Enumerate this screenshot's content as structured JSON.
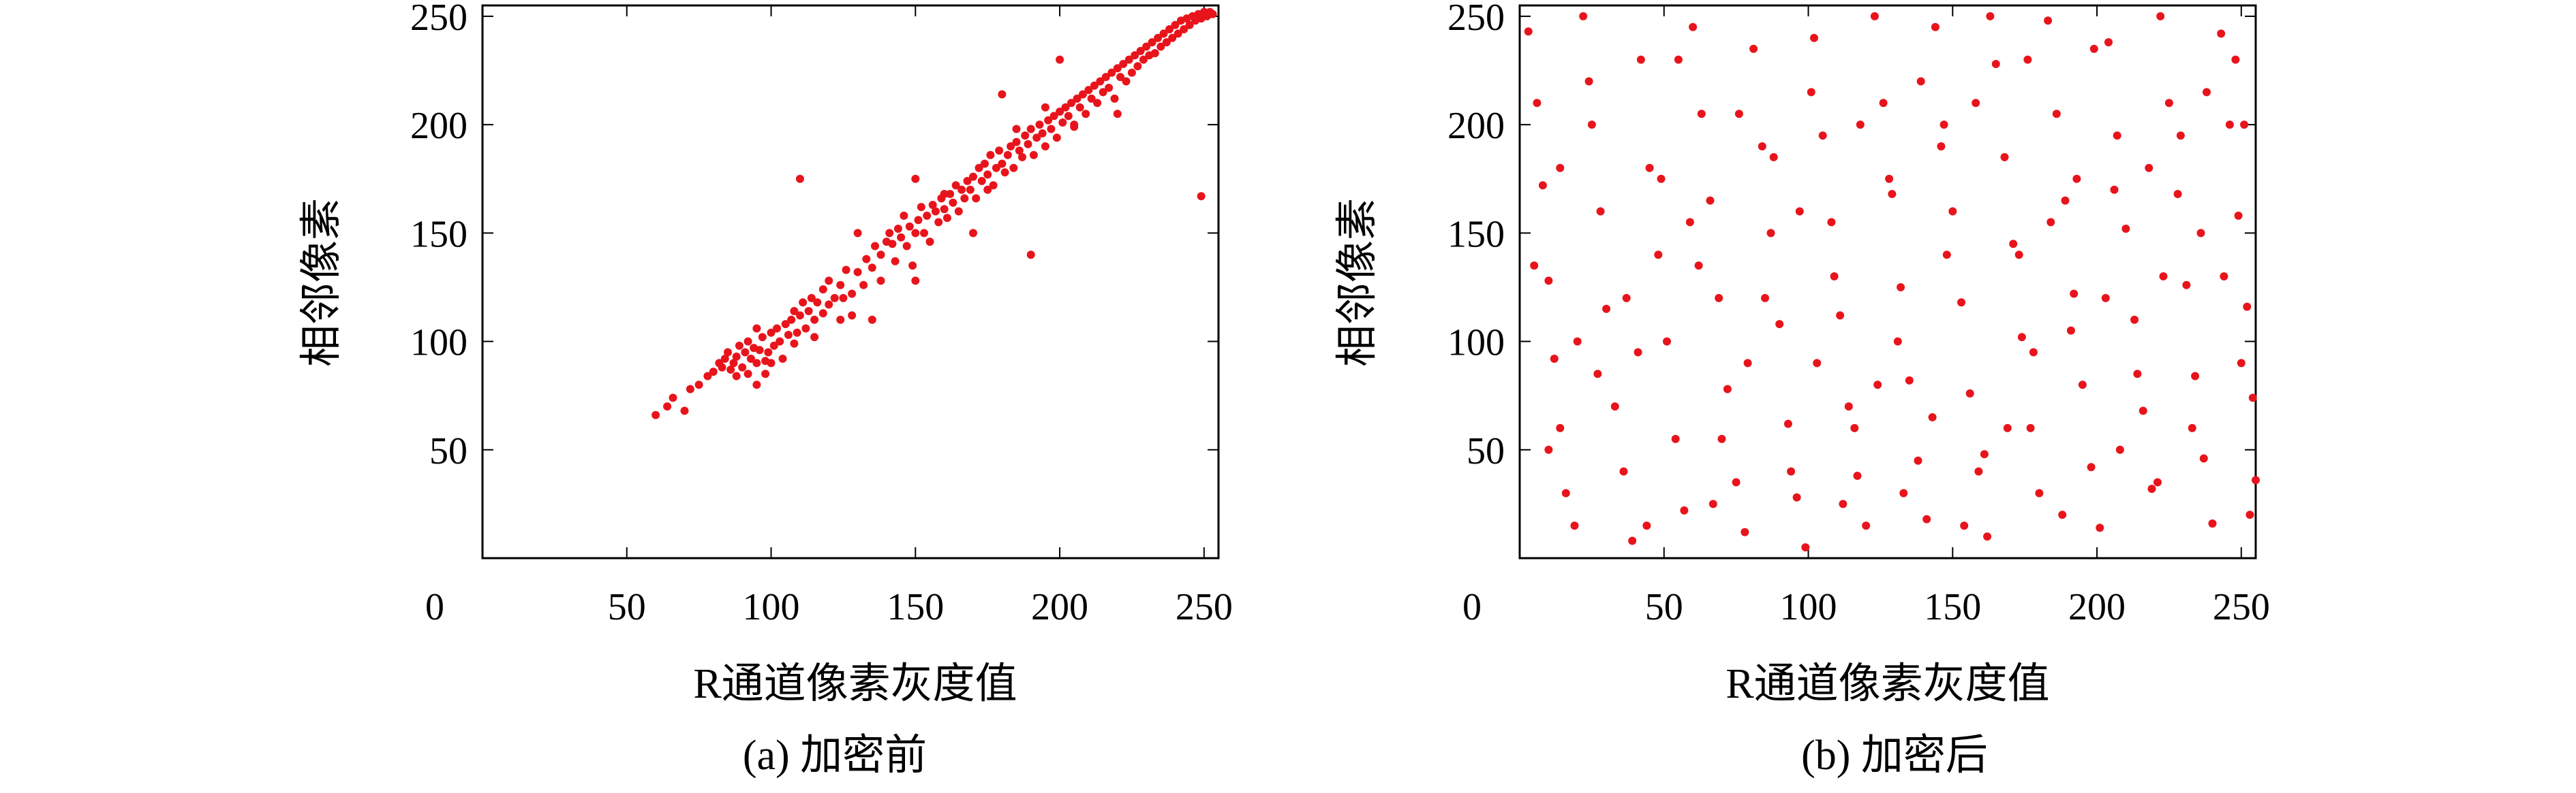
{
  "chart_data": [
    {
      "id": "a",
      "type": "scatter",
      "caption": "(a) 加密前",
      "xlabel": "R通道像素灰度值",
      "ylabel": "相邻像素",
      "xlim": [
        0,
        255
      ],
      "ylim": [
        0,
        255
      ],
      "xticks": [
        0,
        50,
        100,
        150,
        200,
        250
      ],
      "yticks": [
        50,
        100,
        150,
        200,
        250
      ],
      "marker_color": "#e8141c",
      "points": [
        [
          60,
          66
        ],
        [
          64,
          70
        ],
        [
          66,
          74
        ],
        [
          70,
          68
        ],
        [
          72,
          78
        ],
        [
          75,
          80
        ],
        [
          78,
          84
        ],
        [
          80,
          86
        ],
        [
          82,
          90
        ],
        [
          83,
          88
        ],
        [
          84,
          92
        ],
        [
          85,
          95
        ],
        [
          86,
          87
        ],
        [
          87,
          90
        ],
        [
          88,
          93
        ],
        [
          88,
          84
        ],
        [
          89,
          98
        ],
        [
          90,
          88
        ],
        [
          91,
          95
        ],
        [
          92,
          85
        ],
        [
          92,
          100
        ],
        [
          93,
          92
        ],
        [
          94,
          97
        ],
        [
          95,
          90
        ],
        [
          95,
          80
        ],
        [
          96,
          96
        ],
        [
          97,
          102
        ],
        [
          98,
          91
        ],
        [
          98,
          85
        ],
        [
          99,
          95
        ],
        [
          100,
          104
        ],
        [
          101,
          98
        ],
        [
          102,
          106
        ],
        [
          103,
          100
        ],
        [
          104,
          92
        ],
        [
          105,
          108
        ],
        [
          106,
          103
        ],
        [
          107,
          110
        ],
        [
          108,
          99
        ],
        [
          108,
          114
        ],
        [
          109,
          104
        ],
        [
          110,
          112
        ],
        [
          111,
          118
        ],
        [
          112,
          106
        ],
        [
          113,
          114
        ],
        [
          114,
          120
        ],
        [
          115,
          110
        ],
        [
          116,
          118
        ],
        [
          118,
          113
        ],
        [
          118,
          124
        ],
        [
          120,
          117
        ],
        [
          120,
          128
        ],
        [
          122,
          120
        ],
        [
          124,
          110
        ],
        [
          124,
          126
        ],
        [
          126,
          133
        ],
        [
          128,
          122
        ],
        [
          128,
          112
        ],
        [
          130,
          132
        ],
        [
          132,
          126
        ],
        [
          133,
          138
        ],
        [
          135,
          134
        ],
        [
          136,
          144
        ],
        [
          138,
          128
        ],
        [
          138,
          140
        ],
        [
          140,
          146
        ],
        [
          141,
          150
        ],
        [
          142,
          145
        ],
        [
          143,
          137
        ],
        [
          144,
          152
        ],
        [
          145,
          148
        ],
        [
          146,
          158
        ],
        [
          147,
          144
        ],
        [
          148,
          153
        ],
        [
          149,
          135
        ],
        [
          150,
          150
        ],
        [
          151,
          156
        ],
        [
          152,
          162
        ],
        [
          153,
          150
        ],
        [
          154,
          158
        ],
        [
          155,
          146
        ],
        [
          156,
          163
        ],
        [
          157,
          160
        ],
        [
          158,
          155
        ],
        [
          159,
          166
        ],
        [
          160,
          161
        ],
        [
          161,
          157
        ],
        [
          162,
          168
        ],
        [
          163,
          164
        ],
        [
          164,
          172
        ],
        [
          165,
          160
        ],
        [
          166,
          170
        ],
        [
          167,
          166
        ],
        [
          168,
          174
        ],
        [
          169,
          170
        ],
        [
          170,
          176
        ],
        [
          171,
          166
        ],
        [
          172,
          180
        ],
        [
          173,
          174
        ],
        [
          174,
          182
        ],
        [
          175,
          177
        ],
        [
          176,
          186
        ],
        [
          177,
          172
        ],
        [
          178,
          180
        ],
        [
          179,
          188
        ],
        [
          180,
          182
        ],
        [
          181,
          178
        ],
        [
          182,
          186
        ],
        [
          183,
          190
        ],
        [
          184,
          180
        ],
        [
          185,
          192
        ],
        [
          186,
          188
        ],
        [
          187,
          185
        ],
        [
          188,
          195
        ],
        [
          189,
          191
        ],
        [
          190,
          198
        ],
        [
          191,
          186
        ],
        [
          192,
          194
        ],
        [
          193,
          200
        ],
        [
          194,
          196
        ],
        [
          195,
          190
        ],
        [
          196,
          202
        ],
        [
          197,
          198
        ],
        [
          198,
          204
        ],
        [
          199,
          194
        ],
        [
          200,
          206
        ],
        [
          201,
          201
        ],
        [
          202,
          208
        ],
        [
          203,
          204
        ],
        [
          204,
          210
        ],
        [
          205,
          199
        ],
        [
          206,
          212
        ],
        [
          207,
          208
        ],
        [
          208,
          214
        ],
        [
          209,
          205
        ],
        [
          210,
          216
        ],
        [
          211,
          212
        ],
        [
          212,
          218
        ],
        [
          213,
          210
        ],
        [
          214,
          220
        ],
        [
          215,
          215
        ],
        [
          216,
          222
        ],
        [
          217,
          217
        ],
        [
          218,
          224
        ],
        [
          219,
          212
        ],
        [
          220,
          226
        ],
        [
          221,
          222
        ],
        [
          222,
          228
        ],
        [
          223,
          220
        ],
        [
          224,
          230
        ],
        [
          225,
          224
        ],
        [
          226,
          232
        ],
        [
          227,
          227
        ],
        [
          228,
          234
        ],
        [
          229,
          230
        ],
        [
          230,
          236
        ],
        [
          231,
          232
        ],
        [
          232,
          238
        ],
        [
          233,
          233
        ],
        [
          234,
          240
        ],
        [
          235,
          236
        ],
        [
          236,
          242
        ],
        [
          237,
          238
        ],
        [
          238,
          244
        ],
        [
          239,
          240
        ],
        [
          240,
          246
        ],
        [
          241,
          242
        ],
        [
          242,
          248
        ],
        [
          243,
          244
        ],
        [
          244,
          249
        ],
        [
          245,
          246
        ],
        [
          246,
          250
        ],
        [
          247,
          248
        ],
        [
          248,
          251
        ],
        [
          249,
          249
        ],
        [
          250,
          252
        ],
        [
          251,
          250
        ],
        [
          252,
          252
        ],
        [
          253,
          251
        ],
        [
          249,
          167
        ],
        [
          110,
          175
        ],
        [
          135,
          110
        ],
        [
          190,
          140
        ],
        [
          180,
          214
        ],
        [
          150,
          128
        ],
        [
          205,
          200
        ],
        [
          185,
          198
        ],
        [
          160,
          168
        ],
        [
          125,
          120
        ],
        [
          115,
          102
        ],
        [
          95,
          106
        ],
        [
          100,
          90
        ],
        [
          170,
          150
        ],
        [
          150,
          175
        ],
        [
          200,
          230
        ],
        [
          220,
          205
        ],
        [
          130,
          150
        ],
        [
          175,
          170
        ],
        [
          195,
          208
        ]
      ],
      "annotations": []
    },
    {
      "id": "b",
      "type": "scatter",
      "caption": "(b) 加密后",
      "xlabel": "R通道像素灰度值",
      "ylabel": "相邻像素",
      "xlim": [
        0,
        255
      ],
      "ylim": [
        0,
        255
      ],
      "xticks": [
        0,
        50,
        100,
        150,
        200,
        250
      ],
      "yticks": [
        50,
        100,
        150,
        200,
        250
      ],
      "marker_color": "#e8141c",
      "points": [
        [
          3,
          243
        ],
        [
          6,
          210
        ],
        [
          8,
          172
        ],
        [
          10,
          128
        ],
        [
          12,
          92
        ],
        [
          14,
          60
        ],
        [
          16,
          30
        ],
        [
          19,
          15
        ],
        [
          22,
          250
        ],
        [
          25,
          200
        ],
        [
          28,
          160
        ],
        [
          30,
          115
        ],
        [
          33,
          70
        ],
        [
          36,
          40
        ],
        [
          39,
          8
        ],
        [
          42,
          230
        ],
        [
          45,
          180
        ],
        [
          48,
          140
        ],
        [
          51,
          100
        ],
        [
          54,
          55
        ],
        [
          57,
          22
        ],
        [
          60,
          245
        ],
        [
          63,
          205
        ],
        [
          66,
          165
        ],
        [
          69,
          120
        ],
        [
          72,
          78
        ],
        [
          75,
          35
        ],
        [
          78,
          12
        ],
        [
          81,
          235
        ],
        [
          84,
          190
        ],
        [
          87,
          150
        ],
        [
          90,
          108
        ],
        [
          93,
          62
        ],
        [
          96,
          28
        ],
        [
          99,
          5
        ],
        [
          102,
          240
        ],
        [
          105,
          195
        ],
        [
          108,
          155
        ],
        [
          111,
          112
        ],
        [
          114,
          70
        ],
        [
          117,
          38
        ],
        [
          120,
          15
        ],
        [
          123,
          250
        ],
        [
          126,
          210
        ],
        [
          129,
          168
        ],
        [
          132,
          125
        ],
        [
          135,
          82
        ],
        [
          138,
          45
        ],
        [
          141,
          18
        ],
        [
          144,
          245
        ],
        [
          147,
          200
        ],
        [
          150,
          160
        ],
        [
          153,
          118
        ],
        [
          156,
          76
        ],
        [
          159,
          40
        ],
        [
          162,
          10
        ],
        [
          165,
          228
        ],
        [
          168,
          185
        ],
        [
          171,
          145
        ],
        [
          174,
          102
        ],
        [
          177,
          60
        ],
        [
          180,
          30
        ],
        [
          183,
          248
        ],
        [
          186,
          205
        ],
        [
          189,
          165
        ],
        [
          192,
          122
        ],
        [
          195,
          80
        ],
        [
          198,
          42
        ],
        [
          201,
          14
        ],
        [
          204,
          238
        ],
        [
          207,
          195
        ],
        [
          210,
          152
        ],
        [
          213,
          110
        ],
        [
          216,
          68
        ],
        [
          219,
          32
        ],
        [
          222,
          250
        ],
        [
          225,
          210
        ],
        [
          228,
          168
        ],
        [
          231,
          126
        ],
        [
          234,
          84
        ],
        [
          237,
          46
        ],
        [
          240,
          16
        ],
        [
          243,
          242
        ],
        [
          246,
          200
        ],
        [
          249,
          158
        ],
        [
          252,
          116
        ],
        [
          254,
          74
        ],
        [
          255,
          36
        ],
        [
          14,
          180
        ],
        [
          37,
          120
        ],
        [
          55,
          230
        ],
        [
          70,
          55
        ],
        [
          88,
          185
        ],
        [
          103,
          90
        ],
        [
          118,
          200
        ],
        [
          133,
          30
        ],
        [
          148,
          140
        ],
        [
          163,
          250
        ],
        [
          178,
          95
        ],
        [
          193,
          175
        ],
        [
          208,
          50
        ],
        [
          223,
          130
        ],
        [
          238,
          215
        ],
        [
          250,
          90
        ],
        [
          20,
          100
        ],
        [
          44,
          15
        ],
        [
          62,
          135
        ],
        [
          79,
          90
        ],
        [
          97,
          160
        ],
        [
          112,
          25
        ],
        [
          128,
          175
        ],
        [
          143,
          65
        ],
        [
          158,
          210
        ],
        [
          173,
          140
        ],
        [
          188,
          20
        ],
        [
          203,
          120
        ],
        [
          218,
          180
        ],
        [
          233,
          60
        ],
        [
          248,
          230
        ],
        [
          10,
          50
        ],
        [
          27,
          85
        ],
        [
          49,
          175
        ],
        [
          67,
          25
        ],
        [
          85,
          120
        ],
        [
          101,
          215
        ],
        [
          116,
          60
        ],
        [
          131,
          100
        ],
        [
          146,
          190
        ],
        [
          161,
          48
        ],
        [
          176,
          230
        ],
        [
          191,
          105
        ],
        [
          206,
          170
        ],
        [
          221,
          35
        ],
        [
          236,
          150
        ],
        [
          251,
          200
        ],
        [
          5,
          135
        ],
        [
          24,
          220
        ],
        [
          41,
          95
        ],
        [
          59,
          155
        ],
        [
          76,
          205
        ],
        [
          94,
          40
        ],
        [
          109,
          130
        ],
        [
          124,
          80
        ],
        [
          139,
          220
        ],
        [
          154,
          15
        ],
        [
          169,
          60
        ],
        [
          184,
          155
        ],
        [
          199,
          235
        ],
        [
          214,
          85
        ],
        [
          229,
          195
        ],
        [
          244,
          130
        ],
        [
          253,
          20
        ]
      ],
      "annotations": []
    }
  ]
}
